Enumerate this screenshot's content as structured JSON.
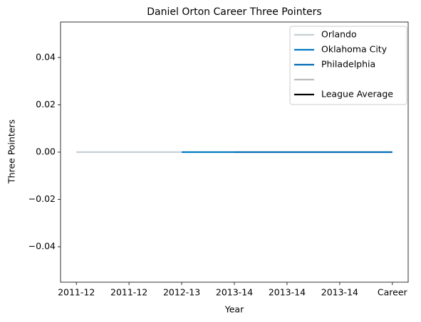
{
  "chart_data": {
    "type": "line",
    "title": "Daniel Orton Career Three Pointers",
    "xlabel": "Year",
    "ylabel": "Three Pointers",
    "categories": [
      "2011-12",
      "2011-12",
      "2012-13",
      "2013-14",
      "2013-14",
      "2013-14",
      "Career"
    ],
    "series": [
      {
        "name": "Orlando",
        "color": "#c4ced4",
        "values": [
          0,
          0,
          0,
          null,
          null,
          null,
          null
        ]
      },
      {
        "name": "Oklahoma City",
        "color": "#007ac1",
        "values": [
          null,
          null,
          0,
          0,
          null,
          null,
          null
        ]
      },
      {
        "name": "Philadelphia",
        "color": "#006bb6",
        "values": [
          null,
          null,
          null,
          0,
          0,
          0,
          0
        ]
      },
      {
        "color": "#bbbbbb",
        "values": [
          null,
          null,
          null,
          null,
          null,
          null,
          null
        ]
      },
      {
        "name": "League Average",
        "color": "#000000",
        "values": [
          null,
          null,
          null,
          null,
          null,
          null,
          null
        ]
      }
    ],
    "ylim": [
      -0.055,
      0.055
    ],
    "yticks": [
      {
        "value": -0.04,
        "label": "−0.04"
      },
      {
        "value": -0.02,
        "label": "−0.02"
      },
      {
        "value": 0,
        "label": "0.00"
      },
      0.02,
      0.04
    ],
    "legend": "upper right"
  }
}
